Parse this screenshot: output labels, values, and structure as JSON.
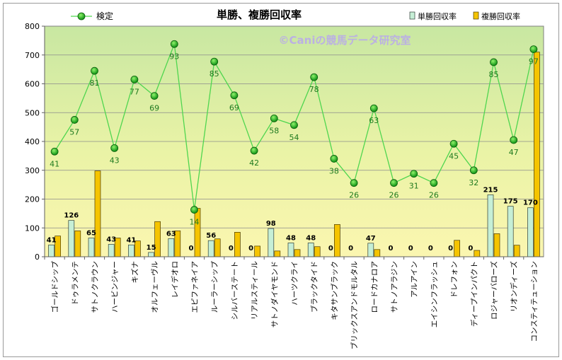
{
  "chart_data": {
    "type": "bar+line",
    "title": "単勝、複勝回収率",
    "watermark": "©Caniの競馬データ研究室",
    "categories": [
      "ゴールドシップ",
      "ドゥラメンテ",
      "サトノクラウン",
      "ハービンジャー",
      "キズナ",
      "オルフェーヴル",
      "レイデオロ",
      "エピファネイア",
      "ルーラーシップ",
      "シルバーステート",
      "リアルスティール",
      "サトノダイヤモンド",
      "ハーツクライ",
      "ブラックタイド",
      "キタサンブラック",
      "ブリックスアンドモルタル",
      "ロードカナロア",
      "サトノアラジン",
      "アルアイン",
      "エイシンフラッシュ",
      "ドレフォン",
      "ディープインパクト",
      "ロジャーバローズ",
      "リオンディーズ",
      "コンスティテューション"
    ],
    "series": [
      {
        "name": "単勝回収率",
        "type": "bar",
        "color": "#c6efd6",
        "values": [
          41,
          126,
          65,
          43,
          41,
          15,
          63,
          0,
          56,
          0,
          0,
          98,
          48,
          48,
          0,
          0,
          47,
          0,
          0,
          0,
          0,
          0,
          215,
          175,
          170
        ]
      },
      {
        "name": "複勝回収率",
        "type": "bar",
        "color": "#f5c400",
        "values": [
          72,
          90,
          298,
          65,
          55,
          122,
          90,
          168,
          62,
          85,
          37,
          20,
          25,
          35,
          112,
          0,
          25,
          0,
          0,
          0,
          57,
          22,
          80,
          40,
          710
        ]
      },
      {
        "name": "検定",
        "type": "line",
        "color": "#4fd64f",
        "values": [
          365,
          475,
          645,
          377,
          615,
          558,
          738,
          163,
          677,
          560,
          368,
          480,
          457,
          623,
          340,
          256,
          515,
          256,
          288,
          256,
          392,
          300,
          675,
          405,
          720
        ],
        "labels": [
          41,
          57,
          81,
          43,
          77,
          69,
          93,
          14,
          85,
          69,
          42,
          58,
          54,
          78,
          38,
          26,
          63,
          26,
          31,
          26,
          45,
          32,
          85,
          47,
          97
        ]
      }
    ],
    "ylim": [
      0,
      800
    ],
    "yticks": [
      0,
      100,
      200,
      300,
      400,
      500,
      600,
      700,
      800
    ],
    "grid": true,
    "legend": "top"
  }
}
